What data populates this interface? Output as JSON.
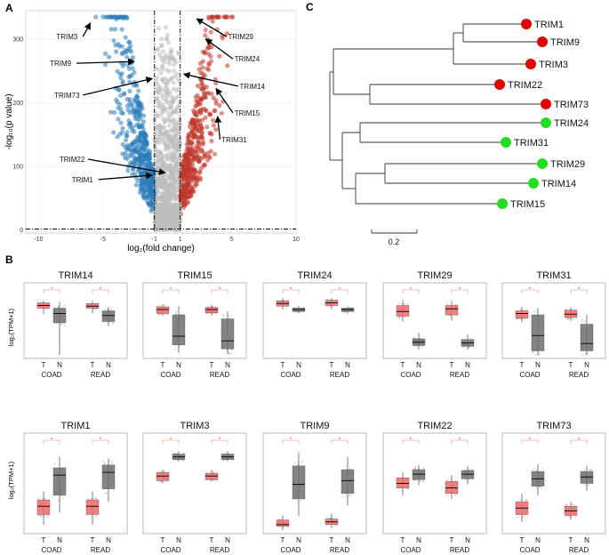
{
  "panels": {
    "a_label": "A",
    "b_label": "B",
    "c_label": "C"
  },
  "colors": {
    "down": "#2b7bba",
    "up": "#c0392b",
    "ns": "#bdbdbd",
    "tumor_box": "#f26b6b",
    "normal_box": "#6e6e6e",
    "tree_red": "#e00000",
    "tree_green": "#22dd22"
  },
  "chart_data": [
    {
      "type": "scatter",
      "title": "",
      "xlabel": "log₂(fold change)",
      "ylabel": "-log₁₀(p value)",
      "xlim": [
        -11,
        10
      ],
      "ylim": [
        -5,
        345
      ],
      "xticks": [
        -10,
        -5,
        -1,
        1,
        5,
        10
      ],
      "yticks": [
        0,
        100,
        200,
        300
      ],
      "thresholds": {
        "x": [
          -1,
          1
        ],
        "y": 1.3
      },
      "annotations": [
        {
          "label": "TRIM3",
          "text_x": -7.8,
          "text_y": 300,
          "point_x": -6.0,
          "point_y": 325
        },
        {
          "label": "TRIM9",
          "text_x": -8.3,
          "text_y": 258,
          "point_x": -2.6,
          "point_y": 265
        },
        {
          "label": "TRIM73",
          "text_x": -7.8,
          "text_y": 208,
          "point_x": -1.2,
          "point_y": 238
        },
        {
          "label": "TRIM22",
          "text_x": -7.4,
          "text_y": 107,
          "point_x": -0.2,
          "point_y": 90
        },
        {
          "label": "TRIM1",
          "text_x": -6.6,
          "text_y": 75,
          "point_x": -1.2,
          "point_y": 86
        },
        {
          "label": "TRIM29",
          "text_x": 5.7,
          "text_y": 300,
          "point_x": 2.3,
          "point_y": 332
        },
        {
          "label": "TRIM24",
          "text_x": 6.2,
          "text_y": 265,
          "point_x": 3.0,
          "point_y": 300
        },
        {
          "label": "TRIM14",
          "text_x": 6.6,
          "text_y": 222,
          "point_x": 1.3,
          "point_y": 245
        },
        {
          "label": "TRIM15",
          "text_x": 6.2,
          "text_y": 180,
          "point_x": 3.8,
          "point_y": 222
        },
        {
          "label": "TRIM31",
          "text_x": 5.2,
          "text_y": 138,
          "point_x": 3.9,
          "point_y": 178
        }
      ]
    },
    {
      "type": "box",
      "ylabel": "log₂(TPM+1)",
      "groups": [
        "COAD",
        "READ"
      ],
      "sample_labels": [
        "T",
        "N"
      ],
      "significance_mark": "*",
      "ylim": [
        0,
        10
      ],
      "genes": [
        {
          "name": "TRIM14",
          "boxes": [
            [
              6.1,
              7.0,
              7.4,
              7.8,
              8.1
            ],
            [
              0,
              4.8,
              6.2,
              7.0,
              8.0
            ],
            [
              6.2,
              7.0,
              7.3,
              7.7,
              8.1
            ],
            [
              4.3,
              5.0,
              5.9,
              6.6,
              7.2
            ]
          ]
        },
        {
          "name": "TRIM15",
          "boxes": [
            [
              5.8,
              6.2,
              6.8,
              7.2,
              7.6
            ],
            [
              0.3,
              1.5,
              2.8,
              6.0,
              7.3
            ],
            [
              5.9,
              6.3,
              6.8,
              7.1,
              7.5
            ],
            [
              0.2,
              0.9,
              2.1,
              5.4,
              6.5
            ]
          ]
        },
        {
          "name": "TRIM24",
          "boxes": [
            [
              6.8,
              7.3,
              7.7,
              8.1,
              8.5
            ],
            [
              6.2,
              6.5,
              6.8,
              7.0,
              7.3
            ],
            [
              6.9,
              7.4,
              7.8,
              8.2,
              8.5
            ],
            [
              6.2,
              6.5,
              6.8,
              7.0,
              7.3
            ]
          ]
        },
        {
          "name": "TRIM29",
          "boxes": [
            [
              5.0,
              5.8,
              6.5,
              7.4,
              8.2
            ],
            [
              0.8,
              1.4,
              1.9,
              2.4,
              3.3
            ],
            [
              5.1,
              6.0,
              6.9,
              7.4,
              8.1
            ],
            [
              0.8,
              1.3,
              1.8,
              2.3,
              3.1
            ]
          ]
        },
        {
          "name": "TRIM31",
          "boxes": [
            [
              4.9,
              5.5,
              6.2,
              6.6,
              7.2
            ],
            [
              0,
              0.6,
              2.9,
              6.0,
              7.0
            ],
            [
              5.1,
              5.6,
              6.1,
              6.7,
              7.1
            ],
            [
              0,
              0.6,
              1.7,
              4.6,
              6.0
            ]
          ]
        },
        {
          "name": "TRIM1",
          "boxes": [
            [
              0.6,
              1.7,
              2.6,
              3.3,
              4.2
            ],
            [
              1.9,
              3.8,
              6.0,
              6.8,
              8.0
            ],
            [
              0.6,
              1.7,
              2.6,
              3.3,
              4.2
            ],
            [
              3.1,
              4.5,
              6.3,
              7.1,
              7.8
            ]
          ]
        },
        {
          "name": "TRIM3",
          "boxes": [
            [
              5.1,
              5.4,
              5.9,
              6.3,
              6.6
            ],
            [
              7.5,
              7.7,
              8.0,
              8.3,
              8.6
            ],
            [
              5.3,
              5.5,
              5.9,
              6.2,
              6.6
            ],
            [
              7.5,
              7.7,
              8.0,
              8.3,
              8.6
            ]
          ]
        },
        {
          "name": "TRIM9",
          "boxes": [
            [
              0,
              0.4,
              0.6,
              1.1,
              1.6
            ],
            [
              1.5,
              3.4,
              5.0,
              7.0,
              8.5
            ],
            [
              0.2,
              0.6,
              0.9,
              1.2,
              1.8
            ],
            [
              2.7,
              4.0,
              5.4,
              6.6,
              8.0
            ]
          ]
        },
        {
          "name": "TRIM22",
          "boxes": [
            [
              3.8,
              4.6,
              5.1,
              5.7,
              6.3
            ],
            [
              4.9,
              5.5,
              6.1,
              6.6,
              7.1
            ],
            [
              3.4,
              4.0,
              4.6,
              5.3,
              6.0
            ],
            [
              5.0,
              5.6,
              6.1,
              6.5,
              7.0
            ]
          ]
        },
        {
          "name": "TRIM73",
          "boxes": [
            [
              0.9,
              1.7,
              2.4,
              3.1,
              4.0
            ],
            [
              3.8,
              4.8,
              5.6,
              6.4,
              7.2
            ],
            [
              1.1,
              1.6,
              2.1,
              2.6,
              3.1
            ],
            [
              4.3,
              5.1,
              5.8,
              6.4,
              7.0
            ]
          ]
        }
      ]
    },
    {
      "type": "dendrogram",
      "scale_label": "0.2",
      "leaves": [
        {
          "name": "TRIM1",
          "color": "red"
        },
        {
          "name": "TRIM9",
          "color": "red"
        },
        {
          "name": "TRIM3",
          "color": "red"
        },
        {
          "name": "TRIM22",
          "color": "red"
        },
        {
          "name": "TRIM73",
          "color": "red"
        },
        {
          "name": "TRIM24",
          "color": "green"
        },
        {
          "name": "TRIM31",
          "color": "green"
        },
        {
          "name": "TRIM29",
          "color": "green"
        },
        {
          "name": "TRIM14",
          "color": "green"
        },
        {
          "name": "TRIM15",
          "color": "green"
        }
      ]
    }
  ]
}
